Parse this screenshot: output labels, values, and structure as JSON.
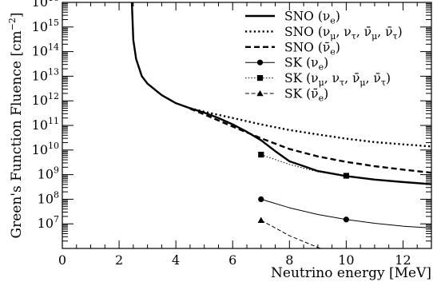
{
  "chart_data": {
    "type": "line",
    "xlabel": "Neutrino energy [MeV]",
    "ylabel": "Green's Function Fluence [cm",
    "ylabel_sup": "−2",
    "ylabel_close": "]",
    "xlim": [
      0,
      13
    ],
    "ylim_log10": [
      6,
      16
    ],
    "y_scale": "log",
    "grid": false,
    "legend_position": "top-right",
    "x_ticks": [
      0,
      2,
      4,
      6,
      8,
      10,
      12
    ],
    "x_tick_labels": [
      "0",
      "2",
      "4",
      "6",
      "8",
      "10",
      "12"
    ],
    "y_ticks_log10": [
      7,
      8,
      9,
      10,
      11,
      12,
      13,
      14,
      15,
      16
    ],
    "y_tick_base": "10",
    "y_tick_exponents": [
      "7",
      "8",
      "9",
      "10",
      "11",
      "12",
      "13",
      "14",
      "15",
      "16"
    ],
    "series": [
      {
        "name": "SNO (ν_e)",
        "legend": {
          "main": "SNO (ν",
          "sub": "e",
          "close": ")"
        },
        "style": "solid",
        "marker": "none",
        "width": 2.4,
        "x": [
          2.45,
          2.5,
          2.6,
          2.8,
          3.0,
          3.5,
          4.0,
          4.5,
          5.0,
          5.5,
          6.0,
          6.5,
          7.0,
          7.5,
          8.0,
          9.0,
          10.0,
          11.0,
          12.0,
          13.0
        ],
        "y": [
          1e+16,
          300000000000000.0,
          50000000000000.0,
          10000000000000.0,
          5000000000000.0,
          1700000000000.0,
          800000000000.0,
          500000000000.0,
          330000000000.0,
          200000000000.0,
          110000000000.0,
          55000000000.0,
          25000000000.0,
          9000000000.0,
          3500000000.0,
          1400000000.0,
          870000000.0,
          630000000.0,
          500000000.0,
          410000000.0
        ]
      },
      {
        "name": "SNO (ν_μ, ν_τ, ν̄_μ, ν̄_τ)",
        "legend": {
          "main": "SNO (ν",
          "sub": "μ",
          "mid": ", ν",
          "sub2": "τ",
          "mid2": ", ν̄",
          "sub3": "μ",
          "mid3": ", ν̄",
          "sub4": "τ",
          "close": ")"
        },
        "style": "dotted",
        "marker": "none",
        "width": 2.4,
        "x": [
          4.5,
          5.0,
          6.0,
          7.0,
          8.0,
          9.0,
          10.0,
          11.0,
          12.0,
          13.0
        ],
        "y": [
          500000000000.0,
          360000000000.0,
          200000000000.0,
          110000000000.0,
          65000000000.0,
          43000000000.0,
          29000000000.0,
          21000000000.0,
          17000000000.0,
          14000000000.0
        ]
      },
      {
        "name": "SNO (ν̄_e)",
        "legend": {
          "main": "SNO (ν̄",
          "sub": "e",
          "close": ")"
        },
        "style": "dashed",
        "marker": "none",
        "width": 2.4,
        "x": [
          4.5,
          5.0,
          6.0,
          7.0,
          8.0,
          9.0,
          10.0,
          11.0,
          12.0,
          13.0
        ],
        "y": [
          480000000000.0,
          280000000000.0,
          90000000000.0,
          30000000000.0,
          11000000000.0,
          5500000000.0,
          3300000000.0,
          2200000000.0,
          1600000000.0,
          1200000000.0
        ]
      },
      {
        "name": "SK (ν_e)",
        "legend": {
          "main": "SK (ν",
          "sub": "e",
          "close": ")"
        },
        "style": "solid",
        "marker": "circle",
        "width": 1,
        "x": [
          7.0,
          8.0,
          9.0,
          10.0,
          11.0,
          12.0,
          13.0
        ],
        "y": [
          100000000.0,
          45000000.0,
          24000000.0,
          15000000.0,
          10500000.0,
          8000000.0,
          6800000.0
        ],
        "markers_x": [
          7.0,
          10.0
        ],
        "markers_y": [
          100000000.0,
          15000000.0
        ]
      },
      {
        "name": "SK (ν_μ, ν_τ, ν̄_μ, ν̄_τ)",
        "legend": {
          "main": "SK (ν",
          "sub": "μ",
          "mid": ", ν",
          "sub2": "τ",
          "mid2": ", ν̄",
          "sub3": "μ",
          "mid3": ", ν̄",
          "sub4": "τ",
          "close": ")"
        },
        "style": "dotted",
        "marker": "square",
        "width": 1,
        "x": [
          7.0,
          8.0,
          9.0,
          10.0
        ],
        "y": [
          6500000000.0,
          2600000000.0,
          1300000000.0,
          900000000.0
        ],
        "markers_x": [
          7.0,
          10.0
        ],
        "markers_y": [
          6500000000.0,
          900000000.0
        ]
      },
      {
        "name": "SK (ν̄_e)",
        "legend": {
          "main": "SK (ν̄",
          "sub": "e",
          "close": ")"
        },
        "style": "dashed",
        "marker": "triangle",
        "width": 1,
        "x": [
          7.0,
          8.0,
          9.0,
          10.0,
          11.0,
          12.0,
          13.0
        ],
        "y": [
          14000000.0,
          3300000.0,
          1100000.0,
          450000.0,
          220000.0,
          140000.0,
          110000.0
        ],
        "markers_x": [
          7.0,
          10.0
        ],
        "markers_y": [
          14000000.0,
          450000.0
        ]
      }
    ]
  }
}
